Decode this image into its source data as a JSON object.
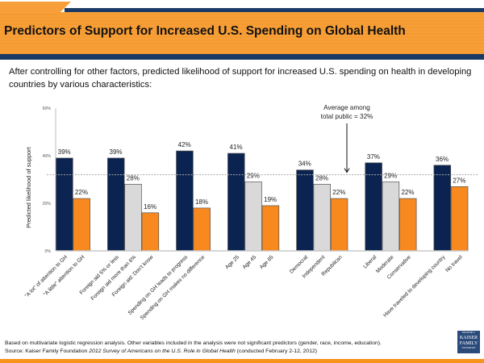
{
  "header": {
    "title": "Predictors of Support for Increased U.S. Spending on Global Health",
    "subtitle": "After controlling for other factors, predicted likelihood of support for increased U.S. spending on health in developing countries by various characteristics:"
  },
  "colors": {
    "navy": "#0b2350",
    "light_gray": "#d9d9d9",
    "orange": "#f7891f",
    "header_orange": "#f7a03a",
    "header_navy": "#1a3a66"
  },
  "chart_data": {
    "type": "bar",
    "title": "",
    "xlabel": "",
    "ylabel": "Predicted likelihood of support",
    "ylim": [
      0,
      60
    ],
    "yticks": [
      0,
      20,
      40,
      60
    ],
    "ytick_labels": [
      "0%",
      "20%",
      "40%",
      "60%"
    ],
    "grid": false,
    "reference_line": {
      "value": 32,
      "style": "dashed",
      "label": "Average among total public = 32%",
      "label_lines": [
        "Average among",
        "total public = 32%"
      ]
    },
    "groups": [
      {
        "bars": [
          {
            "label": "\"A lot\" of attention to GH",
            "value": 39,
            "color": "navy"
          },
          {
            "label": "\"A little\" attention to GH",
            "value": 22,
            "color": "orange"
          }
        ]
      },
      {
        "bars": [
          {
            "label": "Foreign aid 5% or less",
            "value": 39,
            "color": "navy"
          },
          {
            "label": "Foreign aid more than 6%",
            "value": 28,
            "color": "light_gray"
          },
          {
            "label": "Foreign aid: Don't know",
            "value": 16,
            "color": "orange"
          }
        ]
      },
      {
        "bars": [
          {
            "label": "Spending on GH leads to progress",
            "value": 42,
            "color": "navy"
          },
          {
            "label": "Spending on GH makes no difference",
            "value": 18,
            "color": "orange"
          }
        ]
      },
      {
        "bars": [
          {
            "label": "Age 25",
            "value": 41,
            "color": "navy"
          },
          {
            "label": "Age 45",
            "value": 29,
            "color": "light_gray"
          },
          {
            "label": "Age 65",
            "value": 19,
            "color": "orange"
          }
        ]
      },
      {
        "bars": [
          {
            "label": "Democrat",
            "value": 34,
            "color": "navy"
          },
          {
            "label": "Independent",
            "value": 28,
            "color": "light_gray"
          },
          {
            "label": "Republican",
            "value": 22,
            "color": "orange"
          }
        ]
      },
      {
        "bars": [
          {
            "label": "Liberal",
            "value": 37,
            "color": "navy"
          },
          {
            "label": "Moderate",
            "value": 29,
            "color": "light_gray"
          },
          {
            "label": "Conservative",
            "value": 22,
            "color": "orange"
          }
        ]
      },
      {
        "bars": [
          {
            "label": "Have traveled to developing country",
            "value": 36,
            "color": "navy"
          },
          {
            "label": "No travel",
            "value": 27,
            "color": "orange"
          }
        ]
      }
    ],
    "value_format": "{v}%"
  },
  "footer": {
    "note": "Based on multivariate logistic regression analysis. Other variables included in the analysis were not significant predictors (gender, race, income, education).",
    "source_prefix": "Source: Kaiser Family Foundation ",
    "source_title": "2012 Survey of Americans on the U.S. Role in Global Health",
    "source_suffix": " (conducted February 2-12, 2012)",
    "logo_top": "THE HENRY J.",
    "logo_line1": "KAISER",
    "logo_line2": "FAMILY",
    "logo_bottom": "FOUNDATION"
  }
}
